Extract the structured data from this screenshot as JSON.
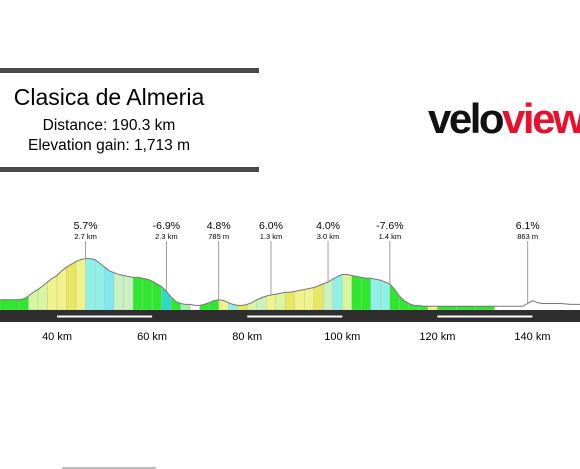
{
  "header": {
    "title": "Clasica de Almeria",
    "distance_line": "Distance: 190.3 km",
    "elevation_line": "Elevation gain: 1,713 m"
  },
  "logo": {
    "part1": "velo",
    "part2": "view",
    "colors": {
      "velo": "#111111",
      "view": "#e8112d"
    }
  },
  "chart_data": {
    "type": "area",
    "title": "",
    "xlabel": "",
    "ylabel": "",
    "x_unit": "km",
    "xlim": [
      28,
      150
    ],
    "ylim": [
      0,
      60
    ],
    "grid": false,
    "legend": "none",
    "x_ticks": [
      {
        "value": 40,
        "label": "40 km"
      },
      {
        "value": 60,
        "label": "60 km"
      },
      {
        "value": 80,
        "label": "80 km"
      },
      {
        "value": 100,
        "label": "100 km"
      },
      {
        "value": 120,
        "label": "120 km"
      },
      {
        "value": 140,
        "label": "140 km"
      }
    ],
    "profile": {
      "x": [
        28,
        30,
        32,
        33,
        34,
        35,
        36,
        37,
        38,
        39,
        40,
        41,
        42,
        43,
        44,
        45,
        46,
        47,
        48,
        49,
        50,
        51,
        52,
        53,
        54,
        55,
        56,
        57,
        58,
        59,
        60,
        61,
        62,
        63,
        64,
        65,
        66,
        67,
        68,
        69,
        70,
        71,
        72,
        73,
        74,
        75,
        76,
        77,
        78,
        79,
        80,
        81,
        82,
        83,
        84,
        85,
        86,
        87,
        88,
        89,
        90,
        91,
        92,
        93,
        94,
        95,
        96,
        97,
        98,
        99,
        100,
        101,
        102,
        103,
        104,
        105,
        106,
        107,
        108,
        109,
        110,
        111,
        112,
        113,
        114,
        115,
        116,
        117,
        118,
        119,
        120,
        122,
        124,
        126,
        128,
        130,
        132,
        134,
        136,
        138,
        139,
        140,
        141,
        142,
        144,
        146,
        148,
        150
      ],
      "y": [
        11,
        11,
        11,
        12,
        15,
        19,
        22,
        26,
        30,
        34,
        37,
        42,
        46,
        49,
        52,
        54,
        55,
        55,
        54,
        50,
        46,
        42,
        40,
        38,
        37,
        36,
        35,
        35,
        34,
        33,
        31,
        28,
        25,
        20,
        14,
        9,
        7,
        6,
        6,
        5,
        5,
        6,
        8,
        10,
        11,
        10,
        8,
        6,
        5,
        5,
        6,
        8,
        11,
        13,
        15,
        16,
        17,
        18,
        19,
        19,
        20,
        21,
        22,
        23,
        24,
        26,
        28,
        30,
        33,
        36,
        38,
        38,
        37,
        36,
        35,
        34,
        34,
        33,
        32,
        30,
        28,
        22,
        15,
        10,
        7,
        5,
        5,
        4,
        4,
        4,
        4,
        4,
        4,
        4,
        4,
        4,
        4,
        4,
        4,
        4,
        7,
        10,
        8,
        7,
        7,
        7,
        6,
        6
      ]
    },
    "segment_colors": [
      "#2ee82e",
      "#2ee82e",
      "#d8f5a0",
      "#d8f5a0",
      "#f2f28a",
      "#f2f28a",
      "#e8e860",
      "#f2f28a",
      "#8ff0e8",
      "#8ff0e8",
      "#7de8f0",
      "#c9f2c0",
      "#c9f2c0",
      "#2ee82e",
      "#2ee82e",
      "#2ee82e",
      "#30d8c8",
      "#2ee82e",
      "#9bf2a8",
      "#ffffff",
      "#2ee82e",
      "#2ee82e",
      "#f2f28a",
      "#8ff0e8",
      "#e8e860",
      "#d8f5a0",
      "#c9f2c0",
      "#f2f28a",
      "#d8f5a0",
      "#e8e860",
      "#f2f28a",
      "#f2f28a",
      "#e8e860",
      "#c9f2c0",
      "#8ff0e8",
      "#d8f5a0",
      "#2ee82e",
      "#2ee82e",
      "#8ff0e8",
      "#8ff0e8",
      "#2ee82e",
      "#2ee82e",
      "#2ee82e",
      "#2ee82e",
      "#f2f28a",
      "#2ee82e",
      "#2ee82e",
      "#2ee82e"
    ],
    "climbs": [
      {
        "x": 46,
        "gradient": "5.7%",
        "length": "2.7 km"
      },
      {
        "x": 63,
        "gradient": "-6.9%",
        "length": "2.3 km"
      },
      {
        "x": 74,
        "gradient": "4.8%",
        "length": "785 m"
      },
      {
        "x": 85,
        "gradient": "6.0%",
        "length": "1.3 km"
      },
      {
        "x": 97,
        "gradient": "4.0%",
        "length": "3.0 km"
      },
      {
        "x": 110,
        "gradient": "-7.6%",
        "length": "1.4 km"
      },
      {
        "x": 139,
        "gradient": "6.1%",
        "length": "863 m"
      }
    ]
  }
}
